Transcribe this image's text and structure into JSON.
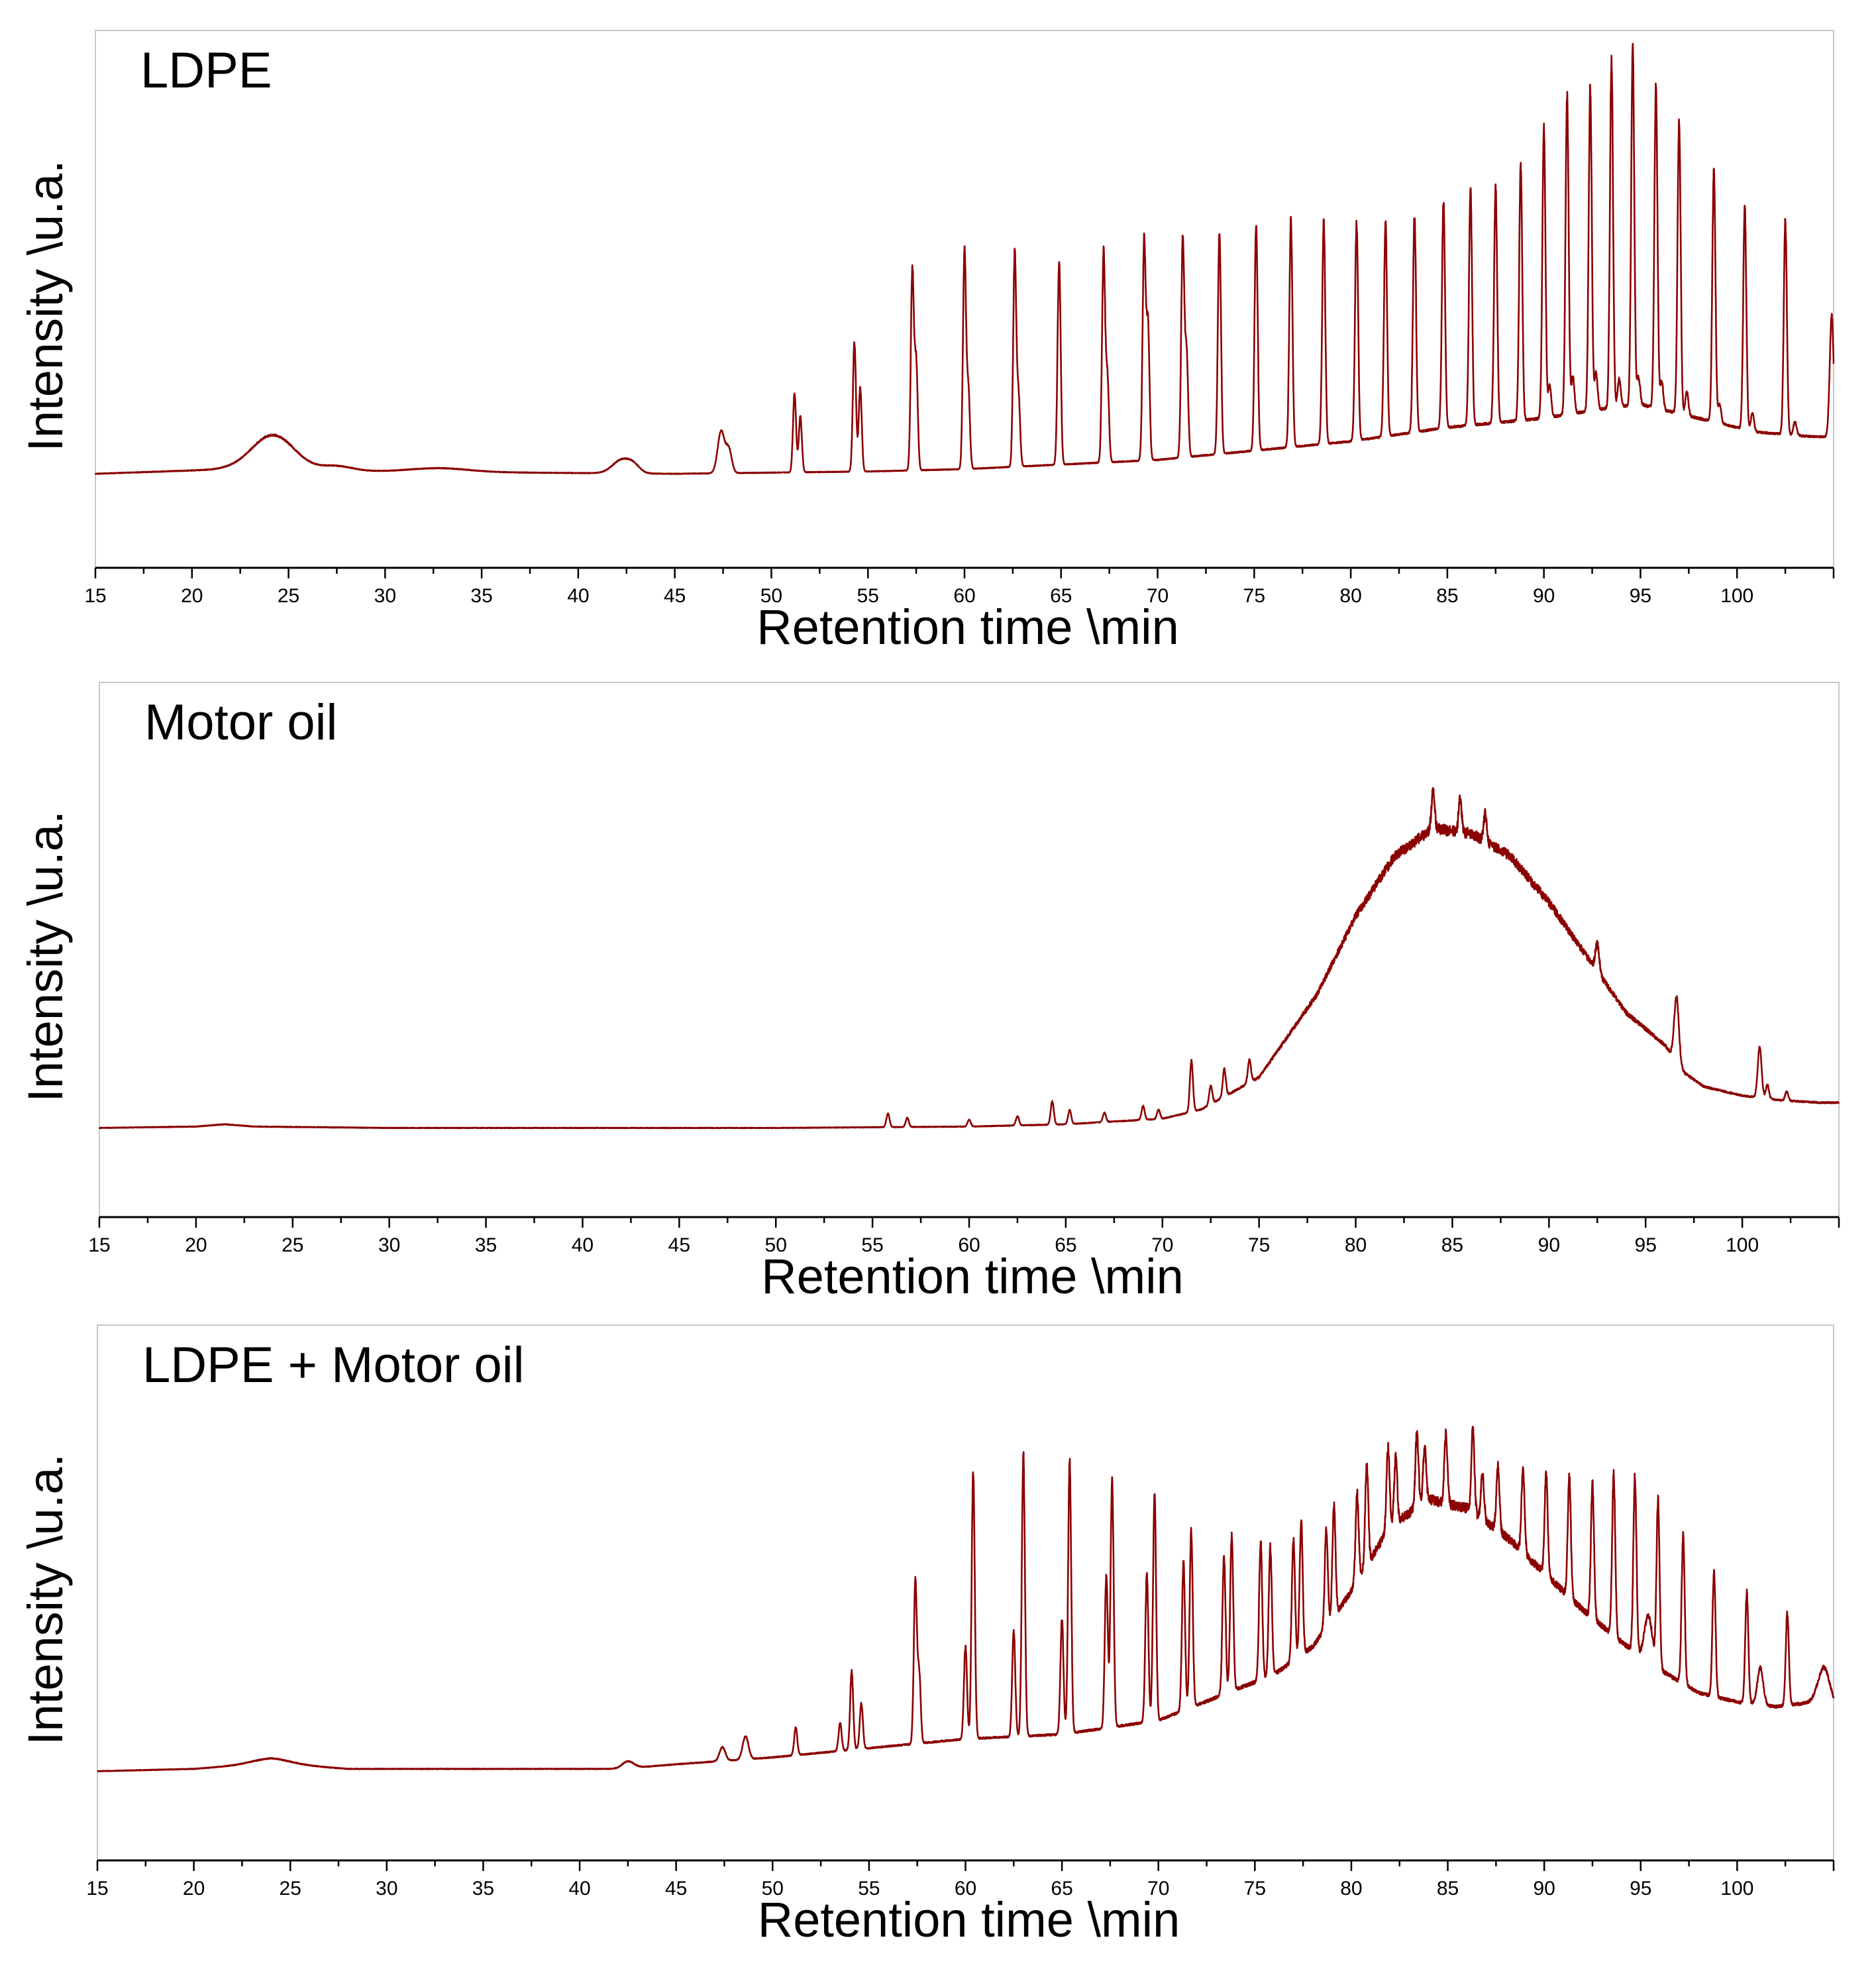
{
  "chart_data": [
    {
      "type": "line",
      "title": "LDPE",
      "xlabel": "Retention time \\min",
      "ylabel": "Intensity \\u.a.",
      "xlim": [
        15,
        105
      ],
      "ylim": [
        0,
        100
      ],
      "xticks": [
        15,
        20,
        25,
        30,
        35,
        40,
        45,
        50,
        55,
        60,
        65,
        70,
        75,
        80,
        85,
        90,
        95,
        100
      ],
      "grid": false,
      "legend": "none",
      "color": "#8b0000",
      "series": [
        {
          "baseline": [
            [
              15,
              10
            ],
            [
              22,
              11
            ],
            [
              30,
              10.5
            ],
            [
              45,
              10
            ],
            [
              55,
              10.5
            ],
            [
              60,
              11
            ],
            [
              70,
              13
            ],
            [
              80,
              17
            ],
            [
              85,
              20
            ],
            [
              90,
              22
            ],
            [
              93,
              24
            ],
            [
              95,
              25
            ],
            [
              98,
              22
            ],
            [
              101,
              19
            ],
            [
              104,
              18
            ],
            [
              105,
              18
            ]
          ],
          "peaks": [
            {
              "x": 24.2,
              "h": 7.5,
              "w": 1.1
            },
            {
              "x": 27.5,
              "h": 1,
              "w": 0.8
            },
            {
              "x": 32.8,
              "h": 0.8,
              "w": 1.5
            },
            {
              "x": 42.3,
              "h": 3,
              "w": 0.5
            },
            {
              "x": 42.9,
              "h": 1,
              "w": 0.3
            },
            {
              "x": 47.4,
              "h": 9,
              "w": 0.18
            },
            {
              "x": 47.8,
              "h": 5,
              "w": 0.15
            },
            {
              "x": 51.2,
              "h": 17,
              "w": 0.08
            },
            {
              "x": 51.5,
              "h": 12,
              "w": 0.08
            },
            {
              "x": 54.3,
              "h": 28,
              "w": 0.08
            },
            {
              "x": 54.6,
              "h": 18,
              "w": 0.08
            },
            {
              "x": 57.3,
              "h": 43,
              "w": 0.08
            },
            {
              "x": 57.5,
              "h": 23,
              "w": 0.08
            },
            {
              "x": 60.0,
              "h": 47,
              "w": 0.08
            },
            {
              "x": 60.2,
              "h": 17,
              "w": 0.08
            },
            {
              "x": 62.6,
              "h": 46,
              "w": 0.08
            },
            {
              "x": 62.8,
              "h": 15,
              "w": 0.08
            },
            {
              "x": 64.9,
              "h": 44,
              "w": 0.08
            },
            {
              "x": 67.2,
              "h": 45,
              "w": 0.08
            },
            {
              "x": 67.4,
              "h": 18,
              "w": 0.08
            },
            {
              "x": 69.3,
              "h": 47,
              "w": 0.08
            },
            {
              "x": 69.5,
              "h": 29,
              "w": 0.08
            },
            {
              "x": 71.3,
              "h": 47,
              "w": 0.08
            },
            {
              "x": 71.5,
              "h": 22,
              "w": 0.08
            },
            {
              "x": 73.2,
              "h": 48,
              "w": 0.08
            },
            {
              "x": 75.1,
              "h": 49,
              "w": 0.08
            },
            {
              "x": 76.9,
              "h": 49,
              "w": 0.08
            },
            {
              "x": 78.6,
              "h": 48,
              "w": 0.08
            },
            {
              "x": 80.3,
              "h": 47,
              "w": 0.08
            },
            {
              "x": 81.8,
              "h": 46,
              "w": 0.08
            },
            {
              "x": 83.3,
              "h": 47,
              "w": 0.08
            },
            {
              "x": 84.8,
              "h": 49,
              "w": 0.08
            },
            {
              "x": 86.2,
              "h": 51,
              "w": 0.08
            },
            {
              "x": 87.5,
              "h": 51,
              "w": 0.08
            },
            {
              "x": 88.8,
              "h": 55,
              "w": 0.08
            },
            {
              "x": 90.0,
              "h": 63,
              "w": 0.08
            },
            {
              "x": 90.3,
              "h": 7,
              "w": 0.08
            },
            {
              "x": 91.2,
              "h": 69,
              "w": 0.08
            },
            {
              "x": 91.5,
              "h": 8,
              "w": 0.08
            },
            {
              "x": 92.4,
              "h": 70,
              "w": 0.08
            },
            {
              "x": 92.7,
              "h": 8,
              "w": 0.08
            },
            {
              "x": 93.5,
              "h": 75,
              "w": 0.08
            },
            {
              "x": 93.9,
              "h": 6,
              "w": 0.08
            },
            {
              "x": 94.6,
              "h": 77,
              "w": 0.08
            },
            {
              "x": 94.9,
              "h": 6,
              "w": 0.08
            },
            {
              "x": 95.8,
              "h": 70,
              "w": 0.08
            },
            {
              "x": 96.1,
              "h": 6,
              "w": 0.08
            },
            {
              "x": 97.0,
              "h": 63,
              "w": 0.08
            },
            {
              "x": 97.4,
              "h": 5,
              "w": 0.08
            },
            {
              "x": 98.8,
              "h": 55,
              "w": 0.08
            },
            {
              "x": 99.1,
              "h": 4,
              "w": 0.08
            },
            {
              "x": 100.4,
              "h": 48,
              "w": 0.08
            },
            {
              "x": 100.8,
              "h": 4,
              "w": 0.08
            },
            {
              "x": 102.5,
              "h": 46,
              "w": 0.08
            },
            {
              "x": 103.0,
              "h": 3,
              "w": 0.08
            },
            {
              "x": 104.9,
              "h": 26,
              "w": 0.1
            }
          ]
        }
      ]
    },
    {
      "type": "line",
      "title": "Motor oil",
      "xlabel": "Retention time \\min",
      "ylabel": "Intensity \\u.a.",
      "xlim": [
        15,
        105
      ],
      "ylim": [
        0,
        100
      ],
      "xticks": [
        15,
        20,
        25,
        30,
        35,
        40,
        45,
        50,
        55,
        60,
        65,
        70,
        75,
        80,
        85,
        90,
        95,
        100
      ],
      "grid": false,
      "legend": "none",
      "color": "#8b0000",
      "series": [
        {
          "baseline": [
            [
              15,
              9
            ],
            [
              20,
              9.3
            ],
            [
              21.5,
              9.8
            ],
            [
              23,
              9.3
            ],
            [
              30,
              9
            ],
            [
              50,
              9
            ],
            [
              60,
              9.3
            ],
            [
              65,
              9.8
            ],
            [
              70,
              11
            ],
            [
              72,
              13
            ],
            [
              75,
              20
            ],
            [
              78,
              38
            ],
            [
              80,
              55
            ],
            [
              82,
              68
            ],
            [
              84,
              74
            ],
            [
              86,
              73
            ],
            [
              88,
              68
            ],
            [
              90,
              58
            ],
            [
              92,
              46
            ],
            [
              94,
              34
            ],
            [
              96,
              27
            ],
            [
              97,
              21
            ],
            [
              98,
              18
            ],
            [
              100,
              16
            ],
            [
              102,
              15
            ],
            [
              104,
              14.5
            ],
            [
              105,
              14.5
            ]
          ],
          "peaks": [
            {
              "x": 55.8,
              "h": 3,
              "w": 0.08
            },
            {
              "x": 56.8,
              "h": 2,
              "w": 0.08
            },
            {
              "x": 60,
              "h": 1.5,
              "w": 0.08
            },
            {
              "x": 62.5,
              "h": 2,
              "w": 0.08
            },
            {
              "x": 64.3,
              "h": 5,
              "w": 0.08
            },
            {
              "x": 65.2,
              "h": 3,
              "w": 0.08
            },
            {
              "x": 67.0,
              "h": 2,
              "w": 0.08
            },
            {
              "x": 69.0,
              "h": 3,
              "w": 0.08
            },
            {
              "x": 69.8,
              "h": 2,
              "w": 0.08
            },
            {
              "x": 71.5,
              "h": 11,
              "w": 0.08
            },
            {
              "x": 72.5,
              "h": 4,
              "w": 0.08
            },
            {
              "x": 73.2,
              "h": 6,
              "w": 0.08
            },
            {
              "x": 74.5,
              "h": 5,
              "w": 0.08
            },
            {
              "x": 84.0,
              "h": 8,
              "w": 0.08
            },
            {
              "x": 85.4,
              "h": 7,
              "w": 0.08
            },
            {
              "x": 86.7,
              "h": 6,
              "w": 0.08
            },
            {
              "x": 92.5,
              "h": 6,
              "w": 0.1
            },
            {
              "x": 96.6,
              "h": 14,
              "w": 0.12
            },
            {
              "x": 100.9,
              "h": 11,
              "w": 0.1
            },
            {
              "x": 101.3,
              "h": 3,
              "w": 0.08
            },
            {
              "x": 102.3,
              "h": 2,
              "w": 0.08
            }
          ]
        }
      ]
    },
    {
      "type": "line",
      "title": "LDPE + Motor oil",
      "xlabel": "Retention time \\min",
      "ylabel": "Intensity \\u.a.",
      "xlim": [
        15,
        105
      ],
      "ylim": [
        0,
        100
      ],
      "xticks": [
        15,
        20,
        25,
        30,
        35,
        40,
        45,
        50,
        55,
        60,
        65,
        70,
        75,
        80,
        85,
        90,
        95,
        100
      ],
      "grid": false,
      "legend": "none",
      "color": "#8b0000",
      "series": [
        {
          "baseline": [
            [
              15,
              9
            ],
            [
              20,
              9.5
            ],
            [
              24,
              10.8
            ],
            [
              28,
              9.5
            ],
            [
              35,
              9.5
            ],
            [
              42,
              9.5
            ],
            [
              45,
              10.5
            ],
            [
              50,
              12
            ],
            [
              55,
              14
            ],
            [
              60,
              16
            ],
            [
              65,
              17
            ],
            [
              70,
              20
            ],
            [
              73,
              25
            ],
            [
              76,
              30
            ],
            [
              78,
              36
            ],
            [
              80,
              48
            ],
            [
              82,
              62
            ],
            [
              84,
              68
            ],
            [
              86,
              66
            ],
            [
              88,
              60
            ],
            [
              90,
              52
            ],
            [
              92,
              44
            ],
            [
              94,
              37
            ],
            [
              96,
              31
            ],
            [
              98,
              26
            ],
            [
              100,
              24
            ],
            [
              102,
              23
            ],
            [
              104,
              24
            ],
            [
              105,
              23
            ]
          ],
          "peaks": [
            {
              "x": 24.0,
              "h": 1,
              "w": 1
            },
            {
              "x": 42.5,
              "h": 1.5,
              "w": 0.3
            },
            {
              "x": 47.4,
              "h": 3,
              "w": 0.15
            },
            {
              "x": 48.6,
              "h": 5,
              "w": 0.15
            },
            {
              "x": 51.2,
              "h": 6,
              "w": 0.08
            },
            {
              "x": 53.5,
              "h": 6,
              "w": 0.08
            },
            {
              "x": 54.1,
              "h": 17,
              "w": 0.08
            },
            {
              "x": 54.6,
              "h": 10,
              "w": 0.08
            },
            {
              "x": 57.4,
              "h": 35,
              "w": 0.08
            },
            {
              "x": 57.6,
              "h": 15,
              "w": 0.08
            },
            {
              "x": 60.0,
              "h": 20,
              "w": 0.08
            },
            {
              "x": 60.4,
              "h": 58,
              "w": 0.08
            },
            {
              "x": 62.5,
              "h": 23,
              "w": 0.08
            },
            {
              "x": 63.0,
              "h": 61,
              "w": 0.08
            },
            {
              "x": 65.0,
              "h": 25,
              "w": 0.08
            },
            {
              "x": 65.4,
              "h": 59,
              "w": 0.08
            },
            {
              "x": 67.3,
              "h": 33,
              "w": 0.08
            },
            {
              "x": 67.6,
              "h": 54,
              "w": 0.08
            },
            {
              "x": 69.4,
              "h": 32,
              "w": 0.08
            },
            {
              "x": 69.8,
              "h": 49,
              "w": 0.08
            },
            {
              "x": 71.3,
              "h": 32,
              "w": 0.08
            },
            {
              "x": 71.7,
              "h": 38,
              "w": 0.08
            },
            {
              "x": 73.4,
              "h": 30,
              "w": 0.08
            },
            {
              "x": 73.8,
              "h": 34,
              "w": 0.08
            },
            {
              "x": 75.3,
              "h": 30,
              "w": 0.08
            },
            {
              "x": 75.8,
              "h": 28,
              "w": 0.08
            },
            {
              "x": 77.0,
              "h": 26,
              "w": 0.08
            },
            {
              "x": 77.4,
              "h": 29,
              "w": 0.08
            },
            {
              "x": 78.7,
              "h": 21,
              "w": 0.08
            },
            {
              "x": 79.1,
              "h": 24,
              "w": 0.08
            },
            {
              "x": 80.3,
              "h": 19,
              "w": 0.08
            },
            {
              "x": 80.8,
              "h": 22,
              "w": 0.08
            },
            {
              "x": 81.9,
              "h": 18,
              "w": 0.08
            },
            {
              "x": 82.3,
              "h": 14,
              "w": 0.08
            },
            {
              "x": 83.4,
              "h": 16,
              "w": 0.08
            },
            {
              "x": 83.8,
              "h": 12,
              "w": 0.08
            },
            {
              "x": 84.9,
              "h": 15,
              "w": 0.08
            },
            {
              "x": 86.3,
              "h": 18,
              "w": 0.08
            },
            {
              "x": 86.8,
              "h": 10,
              "w": 0.08
            },
            {
              "x": 87.6,
              "h": 14,
              "w": 0.08
            },
            {
              "x": 88.9,
              "h": 18,
              "w": 0.08
            },
            {
              "x": 90.1,
              "h": 22,
              "w": 0.08
            },
            {
              "x": 91.3,
              "h": 26,
              "w": 0.08
            },
            {
              "x": 92.5,
              "h": 29,
              "w": 0.08
            },
            {
              "x": 93.6,
              "h": 35,
              "w": 0.08
            },
            {
              "x": 94.7,
              "h": 38,
              "w": 0.08
            },
            {
              "x": 95.4,
              "h": 10,
              "w": 0.2
            },
            {
              "x": 95.9,
              "h": 36,
              "w": 0.08
            },
            {
              "x": 97.2,
              "h": 32,
              "w": 0.08
            },
            {
              "x": 98.8,
              "h": 27,
              "w": 0.08
            },
            {
              "x": 100.5,
              "h": 24,
              "w": 0.08
            },
            {
              "x": 101.2,
              "h": 8,
              "w": 0.15
            },
            {
              "x": 102.6,
              "h": 20,
              "w": 0.08
            },
            {
              "x": 104.5,
              "h": 8,
              "w": 0.3
            }
          ]
        }
      ]
    }
  ]
}
